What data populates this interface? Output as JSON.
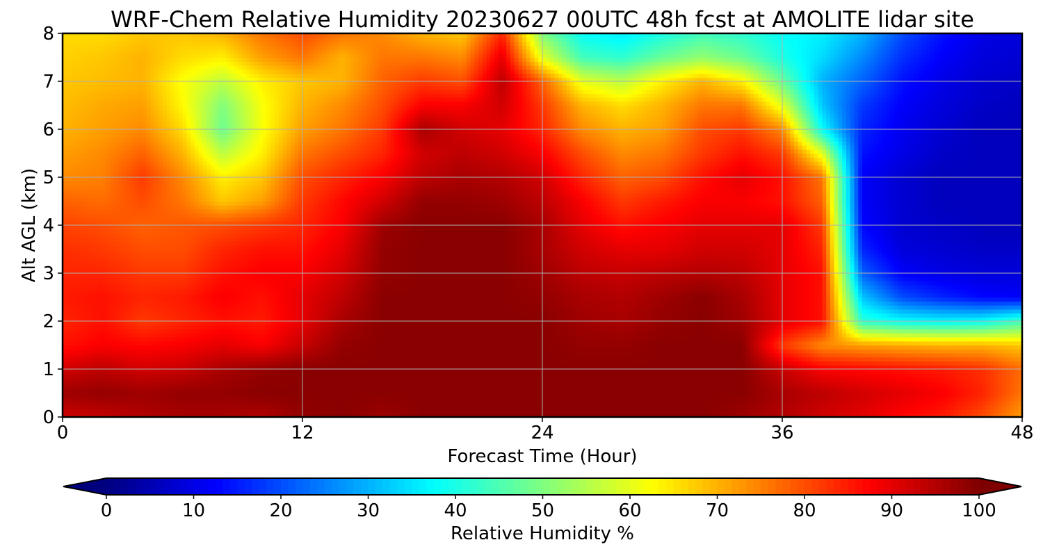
{
  "chart_data": {
    "type": "heatmap",
    "title": "WRF-Chem Relative Humidity 20230627 00UTC 48h fcst at AMOLITE lidar site",
    "xlabel": "Forecast Time (Hour)",
    "ylabel": "Alt AGL (km)",
    "xlim": [
      0,
      48
    ],
    "ylim": [
      0,
      8
    ],
    "x_ticks": [
      "0",
      "12",
      "24",
      "36",
      "48"
    ],
    "y_ticks": [
      "0",
      "1",
      "2",
      "3",
      "4",
      "5",
      "6",
      "7",
      "8"
    ],
    "grid": true,
    "colormap": "jet",
    "colorbar": {
      "label": "Relative Humidity %",
      "min": 0,
      "max": 100,
      "ticks": [
        "0",
        "10",
        "20",
        "30",
        "40",
        "50",
        "60",
        "70",
        "80",
        "90",
        "100"
      ],
      "extend": "both",
      "under_color": "#00007f",
      "over_color": "#7f0000"
    },
    "x": [
      0,
      2,
      4,
      6,
      8,
      10,
      12,
      14,
      16,
      18,
      20,
      22,
      24,
      26,
      28,
      30,
      32,
      34,
      36,
      38,
      40,
      42,
      44,
      46,
      48
    ],
    "y": [
      0,
      0.5,
      1,
      1.5,
      2,
      2.5,
      3,
      3.5,
      4,
      4.5,
      5,
      5.5,
      6,
      6.5,
      7,
      7.5,
      8
    ],
    "z": [
      [
        92,
        93,
        95,
        96,
        96,
        95,
        98,
        99,
        97,
        99,
        99,
        99,
        99,
        99,
        99,
        99,
        99,
        97,
        95,
        92,
        90,
        87,
        85,
        80,
        72
      ],
      [
        97,
        98,
        97,
        98,
        98,
        99,
        99,
        99,
        99,
        99,
        99,
        99,
        99,
        99,
        99,
        99,
        99,
        99,
        96,
        94,
        92,
        90,
        88,
        84,
        76
      ],
      [
        92,
        94,
        92,
        93,
        96,
        98,
        99,
        99,
        99,
        99,
        99,
        99,
        99,
        99,
        99,
        99,
        99,
        99,
        93,
        88,
        87,
        86,
        85,
        83,
        77
      ],
      [
        86,
        88,
        87,
        88,
        90,
        88,
        93,
        98,
        99,
        99,
        99,
        99,
        99,
        98,
        98,
        99,
        99,
        99,
        82,
        74,
        72,
        71,
        70,
        70,
        68
      ],
      [
        84,
        86,
        82,
        84,
        86,
        85,
        90,
        96,
        99,
        99,
        99,
        99,
        99,
        97,
        96,
        98,
        99,
        97,
        90,
        86,
        42,
        38,
        37,
        38,
        44
      ],
      [
        85,
        86,
        84,
        85,
        88,
        86,
        90,
        94,
        99,
        99,
        99,
        99,
        98,
        96,
        95,
        97,
        99,
        96,
        90,
        86,
        32,
        20,
        16,
        13,
        12
      ],
      [
        84,
        84,
        82,
        82,
        86,
        88,
        88,
        92,
        98,
        99,
        99,
        99,
        97,
        94,
        93,
        94,
        95,
        94,
        90,
        86,
        22,
        12,
        10,
        9,
        9
      ],
      [
        83,
        82,
        80,
        80,
        84,
        86,
        86,
        90,
        98,
        99,
        99,
        99,
        96,
        92,
        90,
        90,
        92,
        92,
        90,
        84,
        16,
        9,
        8,
        7,
        7
      ],
      [
        81,
        80,
        78,
        79,
        80,
        82,
        84,
        88,
        97,
        99,
        99,
        99,
        96,
        90,
        86,
        88,
        90,
        90,
        90,
        82,
        13,
        8,
        7,
        6,
        6
      ],
      [
        78,
        77,
        80,
        76,
        68,
        72,
        82,
        87,
        92,
        98,
        98,
        97,
        94,
        88,
        82,
        85,
        88,
        88,
        86,
        78,
        12,
        8,
        6,
        6,
        6
      ],
      [
        74,
        75,
        82,
        74,
        64,
        68,
        80,
        84,
        88,
        94,
        96,
        95,
        92,
        84,
        78,
        80,
        86,
        90,
        86,
        76,
        12,
        8,
        6,
        6,
        6
      ],
      [
        72,
        74,
        78,
        70,
        56,
        64,
        76,
        80,
        84,
        92,
        94,
        92,
        88,
        80,
        74,
        76,
        82,
        86,
        82,
        60,
        14,
        10,
        7,
        6,
        6
      ],
      [
        70,
        72,
        74,
        66,
        48,
        62,
        72,
        76,
        82,
        96,
        92,
        90,
        84,
        74,
        70,
        72,
        80,
        82,
        74,
        38,
        16,
        11,
        8,
        6,
        6
      ],
      [
        69,
        71,
        72,
        63,
        50,
        62,
        70,
        74,
        80,
        88,
        88,
        92,
        82,
        70,
        66,
        70,
        76,
        76,
        60,
        32,
        18,
        12,
        9,
        7,
        6
      ],
      [
        68,
        69,
        70,
        62,
        56,
        64,
        68,
        70,
        78,
        82,
        80,
        94,
        78,
        60,
        56,
        64,
        70,
        64,
        48,
        30,
        22,
        14,
        10,
        8,
        7
      ],
      [
        67,
        68,
        70,
        66,
        64,
        72,
        76,
        70,
        76,
        76,
        74,
        90,
        60,
        44,
        42,
        48,
        52,
        48,
        40,
        34,
        26,
        17,
        12,
        9,
        8
      ],
      [
        66,
        66,
        68,
        68,
        70,
        76,
        80,
        76,
        74,
        70,
        68,
        84,
        50,
        38,
        36,
        40,
        44,
        42,
        38,
        36,
        30,
        20,
        14,
        10,
        9
      ]
    ]
  }
}
